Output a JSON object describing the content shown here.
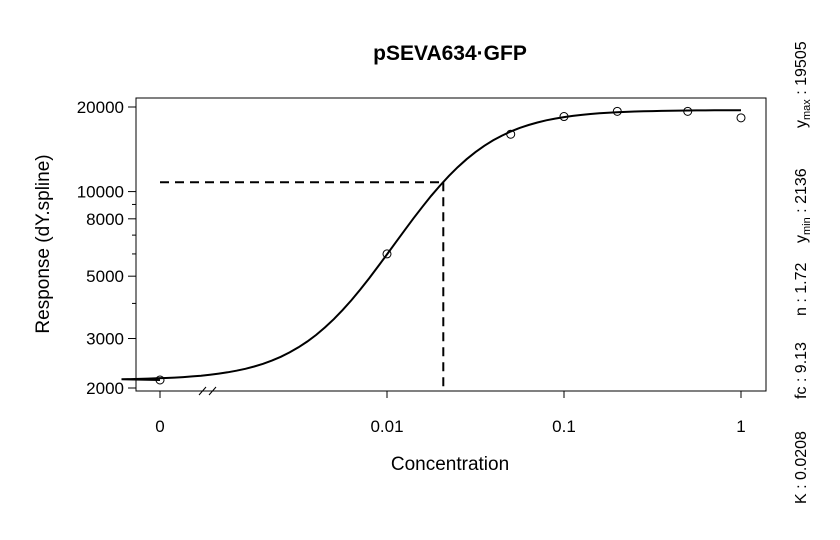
{
  "chart_data": {
    "type": "scatter",
    "title": "pSEVA634·GFP",
    "xlabel": "Concentration",
    "ylabel": "Response (dY.spline)",
    "x_scale": "log, with broken axis at 0",
    "y_scale": "log",
    "ylim": [
      2000,
      20000
    ],
    "grid": false,
    "legend": "none",
    "x_ticks": [
      {
        "label": "0",
        "value": 0
      },
      {
        "label": "0.01",
        "value": 0.01
      },
      {
        "label": "0.1",
        "value": 0.1
      },
      {
        "label": "1",
        "value": 1
      }
    ],
    "y_ticks": [
      {
        "label": "2000",
        "value": 2000
      },
      {
        "label": "3000",
        "value": 3000
      },
      {
        "label": "5000",
        "value": 5000
      },
      {
        "label": "8000",
        "value": 8000
      },
      {
        "label": "10000",
        "value": 10000
      },
      {
        "label": "20000",
        "value": 20000
      }
    ],
    "y_minor_ticks": [
      4000,
      6000,
      7000,
      9000
    ],
    "points": [
      {
        "x": 0,
        "y": 2136
      },
      {
        "x": 0.01,
        "y": 6000
      },
      {
        "x": 0.05,
        "y": 16000
      },
      {
        "x": 0.1,
        "y": 18500
      },
      {
        "x": 0.2,
        "y": 19300
      },
      {
        "x": 0.5,
        "y": 19300
      },
      {
        "x": 1,
        "y": 18300
      }
    ],
    "fit": {
      "model": "Hill",
      "K": 0.0208,
      "n": 1.72,
      "ymin": 2136,
      "ymax": 19505,
      "fc": 9.13
    },
    "k_guide": {
      "x": 0.0208,
      "y": 10800
    },
    "annotations": {
      "ymax": {
        "prefix": "y",
        "sub": "max",
        "value": "19505"
      },
      "ymin": {
        "prefix": "y",
        "sub": "min",
        "value": "2136"
      },
      "n": {
        "label": "n",
        "value": "1.72"
      },
      "fc": {
        "label": "fc",
        "value": "9.13"
      },
      "k": {
        "label": "K",
        "value": "0.0208"
      }
    }
  }
}
